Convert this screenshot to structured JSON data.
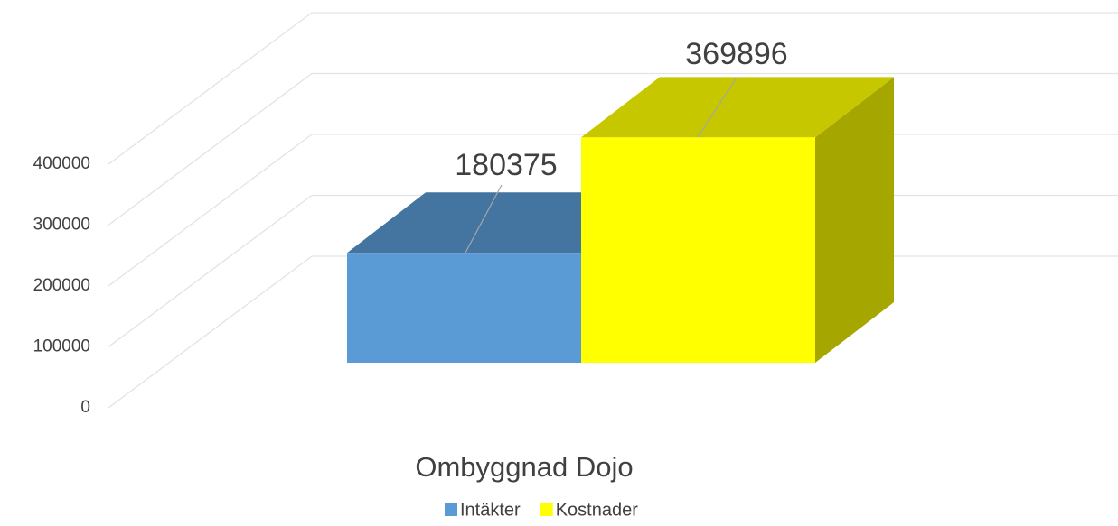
{
  "chart_data": {
    "type": "bar",
    "categories": [
      "Ombyggnad Dojo"
    ],
    "series": [
      {
        "name": "Intäkter",
        "color": "#5b9bd5",
        "values": [
          180375
        ]
      },
      {
        "name": "Kostnader",
        "color": "#ffff00",
        "values": [
          369896
        ]
      }
    ],
    "ylim": [
      0,
      400000
    ],
    "yticks": [
      0,
      100000,
      200000,
      300000,
      400000
    ],
    "grid": true,
    "legend": "bottom"
  }
}
